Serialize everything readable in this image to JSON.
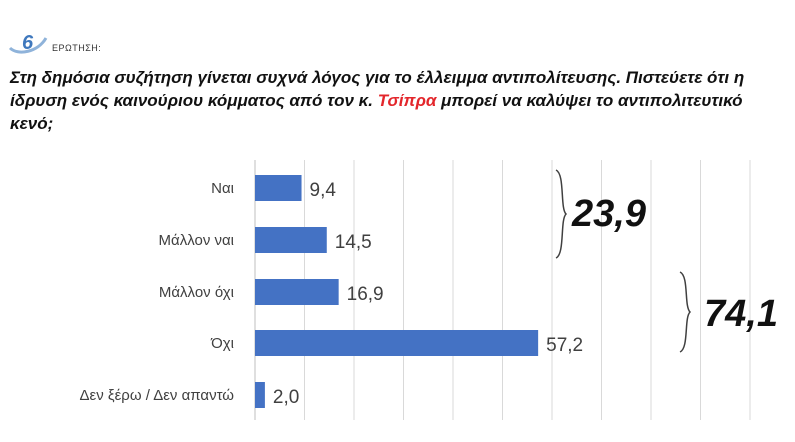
{
  "question": {
    "number": "6",
    "label": "ΕΡΩΤΗΣΗ:",
    "text_part1": "Στη δημόσια συζήτηση γίνεται συχνά λόγος για το έλλειμμα αντιπολίτευσης. Πιστεύετε ότι η ίδρυση ενός καινούριου κόμματος από τον κ. ",
    "text_highlight": "Τσίπρα",
    "text_part2": " μπορεί να καλύψει το αντιπολιτευτικό κενό;",
    "highlight_color": "#e3262b"
  },
  "chart_data": {
    "type": "bar",
    "orientation": "horizontal",
    "categories": [
      "Ναι",
      "Μάλλον ναι",
      "Μάλλον όχι",
      "Όχι",
      "Δεν ξέρω / Δεν απαντώ"
    ],
    "values": [
      9.4,
      14.5,
      16.9,
      57.2,
      2.0
    ],
    "value_labels": [
      "9,4",
      "14,5",
      "16,9",
      "57,2",
      "2,0"
    ],
    "xlim": [
      0,
      100
    ],
    "grid": true,
    "bar_color": "#4472c4",
    "groups": [
      {
        "label": "23,9",
        "categories": [
          "Ναι",
          "Μάλλον ναι"
        ]
      },
      {
        "label": "74,1",
        "categories": [
          "Μάλλον όχι",
          "Όχι"
        ]
      }
    ]
  }
}
